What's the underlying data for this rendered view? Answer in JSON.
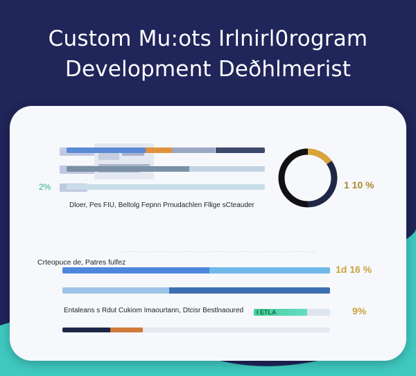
{
  "page": {
    "title_line1": "Custom Mu:ots Irlnirl0rogram",
    "title_line2": "Development Deðhlmerist"
  },
  "colors": {
    "background": "#20255a",
    "card": "#f6f8fc",
    "teal_accent": "#3fcac0",
    "blue_bar": "#5b8ad6",
    "orange_bar": "#e0913e",
    "navy": "#1e2747",
    "gold_text": "#c9a23b",
    "green_text": "#2fae85"
  },
  "upper_panel": {
    "left_percent": "2%",
    "right_value": "1 10 %",
    "caption": "Dloer, Pes FIU, Beltolg Fepnn  Prnudachlen Fllige sCteauder",
    "progress": [
      {
        "segments": [
          {
            "color": "#5b8ad6",
            "fraction": 0.4
          },
          {
            "color": "#e0913e",
            "fraction": 0.13
          },
          {
            "color": "#9aa8c4",
            "fraction": 0.22
          },
          {
            "color": "#3c4a6b",
            "fraction": 0.25
          }
        ]
      },
      {
        "segments": [
          {
            "color": "#7a90a6",
            "fraction": 0.62
          },
          {
            "color": "#c4d3e4",
            "fraction": 0.38
          }
        ]
      },
      {
        "segments": [
          {
            "color": "#c9dde9",
            "fraction": 1.0
          }
        ]
      }
    ],
    "donut": [
      {
        "color": "#d9a33a",
        "value": 15
      },
      {
        "color": "#1e2747",
        "value": 35
      },
      {
        "color": "#111111",
        "value": 50
      }
    ]
  },
  "lower_panel": {
    "label_top": "Crteopuce de,  Patres  fulfez",
    "value_top": "1d 16 %",
    "label_bottom": "Entaleans  s  Rdut  Cukiom Imaourtann,  Dtcisr  Bestlnaoured",
    "chip_text": "I ETLA",
    "value_bottom": "9%",
    "progress": [
      {
        "segments": [
          {
            "color": "#4f86dc",
            "fraction": 0.55
          },
          {
            "color": "#6fb8e8",
            "fraction": 0.45
          }
        ]
      },
      {
        "segments": [
          {
            "color": "#9fc4ea",
            "fraction": 0.4
          },
          {
            "color": "#3d6fb0",
            "fraction": 0.6
          }
        ]
      },
      {
        "segments": [
          {
            "color": "#1e2747",
            "fraction": 0.18
          },
          {
            "color": "#d07a3a",
            "fraction": 0.12
          },
          {
            "color": "#e6e9ef",
            "fraction": 0.7
          }
        ]
      }
    ]
  }
}
